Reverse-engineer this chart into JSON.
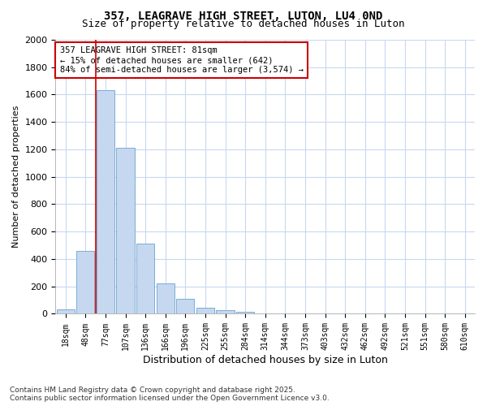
{
  "title_line1": "357, LEAGRAVE HIGH STREET, LUTON, LU4 0ND",
  "title_line2": "Size of property relative to detached houses in Luton",
  "xlabel": "Distribution of detached houses by size in Luton",
  "ylabel": "Number of detached properties",
  "categories": [
    "18sqm",
    "48sqm",
    "77sqm",
    "107sqm",
    "136sqm",
    "166sqm",
    "196sqm",
    "225sqm",
    "255sqm",
    "284sqm",
    "314sqm",
    "344sqm",
    "373sqm",
    "403sqm",
    "432sqm",
    "462sqm",
    "492sqm",
    "521sqm",
    "551sqm",
    "580sqm",
    "610sqm"
  ],
  "values": [
    35,
    460,
    1630,
    1210,
    510,
    220,
    110,
    45,
    25,
    15,
    0,
    0,
    0,
    0,
    0,
    0,
    0,
    0,
    0,
    0,
    0
  ],
  "bar_color": "#c5d8f0",
  "bar_edge_color": "#7aadd4",
  "annotation_box_text": "357 LEAGRAVE HIGH STREET: 81sqm\n← 15% of detached houses are smaller (642)\n84% of semi-detached houses are larger (3,574) →",
  "annotation_box_color": "#ffffff",
  "annotation_box_edge": "#cc0000",
  "vline_color": "#cc0000",
  "vline_x_index": 2,
  "ylim": [
    0,
    2000
  ],
  "yticks": [
    0,
    200,
    400,
    600,
    800,
    1000,
    1200,
    1400,
    1600,
    1800,
    2000
  ],
  "bg_color": "#ffffff",
  "grid_color": "#c8d8f0",
  "footer_line1": "Contains HM Land Registry data © Crown copyright and database right 2025.",
  "footer_line2": "Contains public sector information licensed under the Open Government Licence v3.0."
}
